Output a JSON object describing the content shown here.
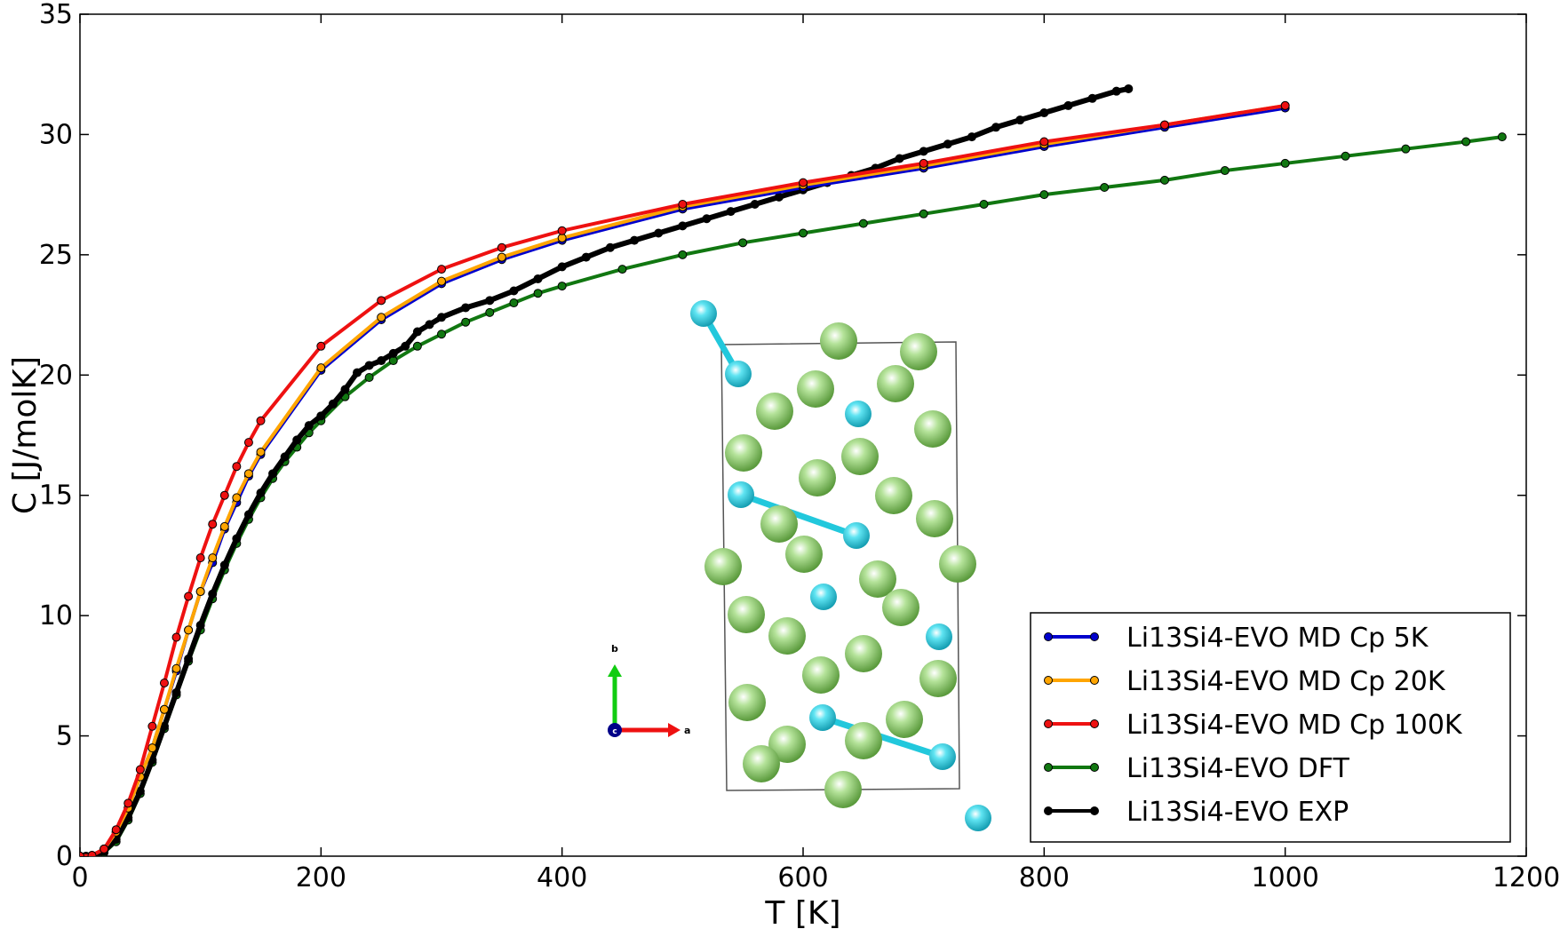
{
  "chart_data": {
    "type": "line",
    "title": "",
    "xlabel": "T [K]",
    "ylabel": "C [J/molK]",
    "xlim": [
      0,
      1200
    ],
    "ylim": [
      0,
      35
    ],
    "xticks": [
      0,
      200,
      400,
      600,
      800,
      1000,
      1200
    ],
    "yticks": [
      0,
      5,
      10,
      15,
      20,
      25,
      30,
      35
    ],
    "grid": false,
    "legend_position": "bottom-right",
    "series": [
      {
        "name": "Li13Si4-EVO MD Cp 5K",
        "color": "#0000cc",
        "x": [
          0,
          10,
          20,
          30,
          40,
          50,
          60,
          70,
          80,
          90,
          100,
          110,
          120,
          130,
          140,
          150,
          200,
          250,
          300,
          350,
          400,
          500,
          600,
          700,
          800,
          900,
          1000
        ],
        "y": [
          0,
          0.03,
          0.3,
          1.0,
          2.0,
          3.3,
          4.5,
          6.1,
          7.7,
          9.4,
          11.0,
          12.2,
          13.6,
          14.7,
          15.8,
          16.7,
          20.2,
          22.3,
          23.8,
          24.8,
          25.6,
          26.9,
          27.8,
          28.6,
          29.5,
          30.3,
          31.1
        ]
      },
      {
        "name": "Li13Si4-EVO MD Cp 20K",
        "color": "#ffa500",
        "x": [
          0,
          10,
          20,
          30,
          40,
          50,
          60,
          70,
          80,
          90,
          100,
          110,
          120,
          130,
          140,
          150,
          200,
          250,
          300,
          350,
          400,
          500,
          600,
          700,
          800,
          900,
          1000
        ],
        "y": [
          0,
          0.03,
          0.3,
          1.0,
          2.0,
          3.3,
          4.5,
          6.1,
          7.8,
          9.4,
          11.0,
          12.4,
          13.7,
          14.9,
          15.9,
          16.8,
          20.3,
          22.4,
          23.9,
          24.9,
          25.7,
          27.0,
          27.9,
          28.7,
          29.6,
          30.4,
          31.2
        ]
      },
      {
        "name": "Li13Si4-EVO MD Cp 100K",
        "color": "#ee1111",
        "x": [
          0,
          10,
          20,
          30,
          40,
          50,
          60,
          70,
          80,
          90,
          100,
          110,
          120,
          130,
          140,
          150,
          200,
          250,
          300,
          350,
          400,
          500,
          600,
          700,
          800,
          900,
          1000
        ],
        "y": [
          0,
          0.03,
          0.3,
          1.1,
          2.2,
          3.6,
          5.4,
          7.2,
          9.1,
          10.8,
          12.4,
          13.8,
          15.0,
          16.2,
          17.2,
          18.1,
          21.2,
          23.1,
          24.4,
          25.3,
          26.0,
          27.1,
          28.0,
          28.8,
          29.7,
          30.4,
          31.2
        ]
      },
      {
        "name": "Li13Si4-EVO DFT",
        "color": "#117711",
        "x": [
          0,
          10,
          20,
          30,
          40,
          50,
          60,
          70,
          80,
          90,
          100,
          110,
          120,
          130,
          140,
          150,
          160,
          170,
          180,
          190,
          200,
          220,
          240,
          260,
          280,
          300,
          320,
          340,
          360,
          380,
          400,
          450,
          500,
          550,
          600,
          650,
          700,
          750,
          800,
          850,
          900,
          950,
          1000,
          1050,
          1100,
          1150,
          1180
        ],
        "y": [
          0,
          0.02,
          0.15,
          0.6,
          1.5,
          2.6,
          3.9,
          5.3,
          6.7,
          8.1,
          9.4,
          10.7,
          11.9,
          13.0,
          14.0,
          14.9,
          15.7,
          16.4,
          17.0,
          17.6,
          18.1,
          19.1,
          19.9,
          20.6,
          21.2,
          21.7,
          22.2,
          22.6,
          23.0,
          23.4,
          23.7,
          24.4,
          25.0,
          25.5,
          25.9,
          26.3,
          26.7,
          27.1,
          27.5,
          27.8,
          28.1,
          28.5,
          28.8,
          29.1,
          29.4,
          29.7,
          29.9
        ]
      },
      {
        "name": "Li13Si4-EVO EXP",
        "color": "#000000",
        "x": [
          5,
          10,
          20,
          30,
          40,
          50,
          60,
          70,
          80,
          90,
          100,
          110,
          120,
          130,
          140,
          150,
          160,
          170,
          180,
          190,
          200,
          210,
          220,
          230,
          240,
          250,
          260,
          270,
          280,
          290,
          300,
          320,
          340,
          360,
          380,
          400,
          420,
          440,
          460,
          480,
          500,
          520,
          540,
          560,
          580,
          600,
          620,
          640,
          660,
          680,
          700,
          720,
          740,
          760,
          780,
          800,
          820,
          840,
          860,
          870
        ],
        "y": [
          0,
          0.02,
          0.2,
          0.7,
          1.6,
          2.7,
          4.0,
          5.4,
          6.8,
          8.2,
          9.6,
          10.9,
          12.1,
          13.2,
          14.2,
          15.1,
          15.9,
          16.6,
          17.3,
          17.9,
          18.3,
          18.8,
          19.4,
          20.1,
          20.4,
          20.6,
          20.9,
          21.2,
          21.8,
          22.1,
          22.4,
          22.8,
          23.1,
          23.5,
          24.0,
          24.5,
          24.9,
          25.3,
          25.6,
          25.9,
          26.2,
          26.5,
          26.8,
          27.1,
          27.4,
          27.7,
          28.0,
          28.3,
          28.6,
          29.0,
          29.3,
          29.6,
          29.9,
          30.3,
          30.6,
          30.9,
          31.2,
          31.5,
          31.8,
          31.9
        ]
      }
    ]
  },
  "inset": {
    "axis_labels": {
      "x": "a",
      "y": "b",
      "origin": "c"
    },
    "colors": {
      "a": "#ee1111",
      "b": "#11cc11",
      "c": "#000088",
      "li": "#8fce6a",
      "si": "#22c8dc"
    }
  }
}
